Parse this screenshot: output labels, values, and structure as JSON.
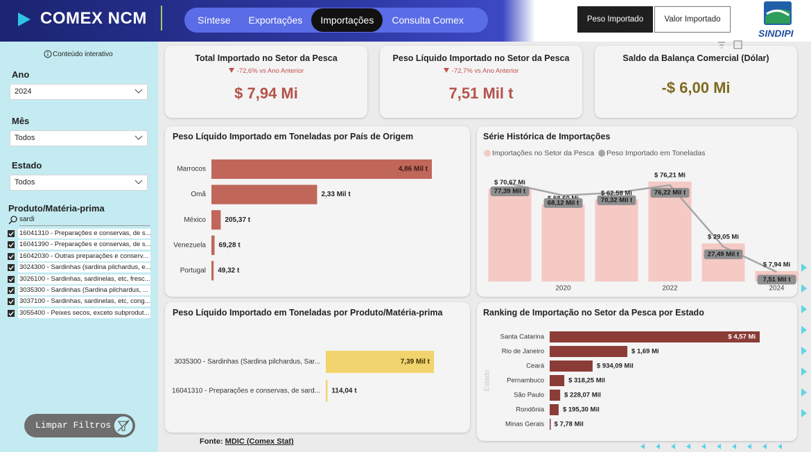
{
  "header": {
    "title": "COMEX NCM",
    "tabs": [
      "Síntese",
      "Exportações",
      "Importações",
      "Consulta Comex"
    ],
    "active_tab": 2,
    "toggles": [
      "Peso Importado",
      "Valor Importado"
    ],
    "logo": "SINDIPI"
  },
  "sidebar": {
    "info": "Conteúdo interativo",
    "filters": [
      {
        "label": "Ano",
        "value": "2024"
      },
      {
        "label": "Mês",
        "value": "Todos"
      },
      {
        "label": "Estado",
        "value": "Todos"
      }
    ],
    "product_filter": {
      "label": "Produto/Matéria-prima",
      "search": "sardi",
      "items": [
        "16041310 - Preparações e conservas, de s...",
        "16041390 - Preparações e conservas, de s...",
        "16042030 - Outras preparações e conserv...",
        "3024300 - Sardinhas (sardina pilchardus, e...",
        "3026100 - Sardinhas, sardinelas, etc, fresc...",
        "3035300 - Sardinhas (Sardina pilchardus, ...",
        "3037100 - Sardinhas, sardinelas, etc, cong...",
        "3055400 - Peixes secos, exceto subprodut..."
      ]
    },
    "clear_button": "Limpar Filtros"
  },
  "kpis": [
    {
      "title": "Total Importado no Setor da Pesca",
      "change": "-72,6% vs Ano Anterior",
      "value": "$ 7,94 Mi",
      "color": "#b5524a"
    },
    {
      "title": "Peso Líquido Importado no Setor da Pesca",
      "change": "-72,7% vs Ano Anterior",
      "value": "7,51 Mil t",
      "color": "#b5524a"
    },
    {
      "title": "Saldo da Balança Comercial (Dólar)",
      "value": "-$ 6,00 Mi",
      "color": "#7d6a1e"
    }
  ],
  "chart_data": [
    {
      "type": "bar",
      "orientation": "horizontal",
      "title": "Peso Líquido Importado em Toneladas por País de Origem",
      "categories": [
        "Marrocos",
        "Omã",
        "México",
        "Venezuela",
        "Portugal"
      ],
      "values": [
        4860,
        2330,
        205.37,
        69.28,
        49.32
      ],
      "value_labels": [
        "4,86 Mil t",
        "2,33 Mil t",
        "205,37 t",
        "69,28 t",
        "49,32 t"
      ],
      "color": "#c0675a"
    },
    {
      "type": "combo",
      "title": "Série Histórica de Importações",
      "categories": [
        null,
        "2020",
        null,
        "2022",
        null,
        "2024"
      ],
      "series": [
        {
          "name": "Importações no Setor da Pesca",
          "color": "#f5c9c4",
          "kind": "bar",
          "values": [
            70.67,
            58.6,
            62.58,
            76.21,
            29.05,
            7.94
          ],
          "value_labels": [
            "$ 70,67 Mi",
            "$ 58,60 Mi",
            "$ 62,58 Mi",
            "$ 76,21 Mi",
            "$ 29,05 Mi",
            "$ 7,94 Mi"
          ]
        },
        {
          "name": "Peso Importado em Toneladas",
          "color": "#a6a6a6",
          "kind": "line",
          "axis": "y2",
          "values": [
            77.39,
            68.12,
            70.32,
            76.22,
            27.49,
            7.51
          ],
          "value_labels": [
            "77,39 Mil t",
            "68,12 Mil t",
            "70,32 Mil t",
            "76,22 Mil t",
            "27,49 Mil t",
            "7,51 Mil t"
          ]
        }
      ]
    },
    {
      "type": "bar",
      "orientation": "horizontal",
      "title": "Peso Líquido Importado em Toneladas por Produto/Matéria-prima",
      "categories": [
        "3035300 - Sardinhas (Sardina pilchardus, Sar...",
        "16041310 - Preparações e conservas, de sard..."
      ],
      "values": [
        7390,
        114.04
      ],
      "value_labels": [
        "7,39 Mil t",
        "114,04 t"
      ],
      "color": "#f2d46f"
    },
    {
      "type": "bar",
      "orientation": "horizontal",
      "title": "Ranking de Importação no Setor da Pesca por Estado",
      "y_label": "Estado",
      "categories": [
        "Santa Catarina",
        "Rio de Janeiro",
        "Ceará",
        "Pernambuco",
        "São Paulo",
        "Rondônia",
        "Minas Gerais"
      ],
      "values": [
        4.57,
        1.69,
        0.93409,
        0.31825,
        0.22807,
        0.1953,
        0.00778
      ],
      "value_labels": [
        "$ 4,57 Mi",
        "$ 1,69 Mi",
        "$ 934,09 Mil",
        "$ 318,25 Mil",
        "$ 228,07 Mil",
        "$ 195,30 Mil",
        "$ 7,78 Mil"
      ],
      "color": "#8b3c37"
    }
  ],
  "source": {
    "label": "Fonte:",
    "link": "MDIC (Comex Stat)"
  }
}
